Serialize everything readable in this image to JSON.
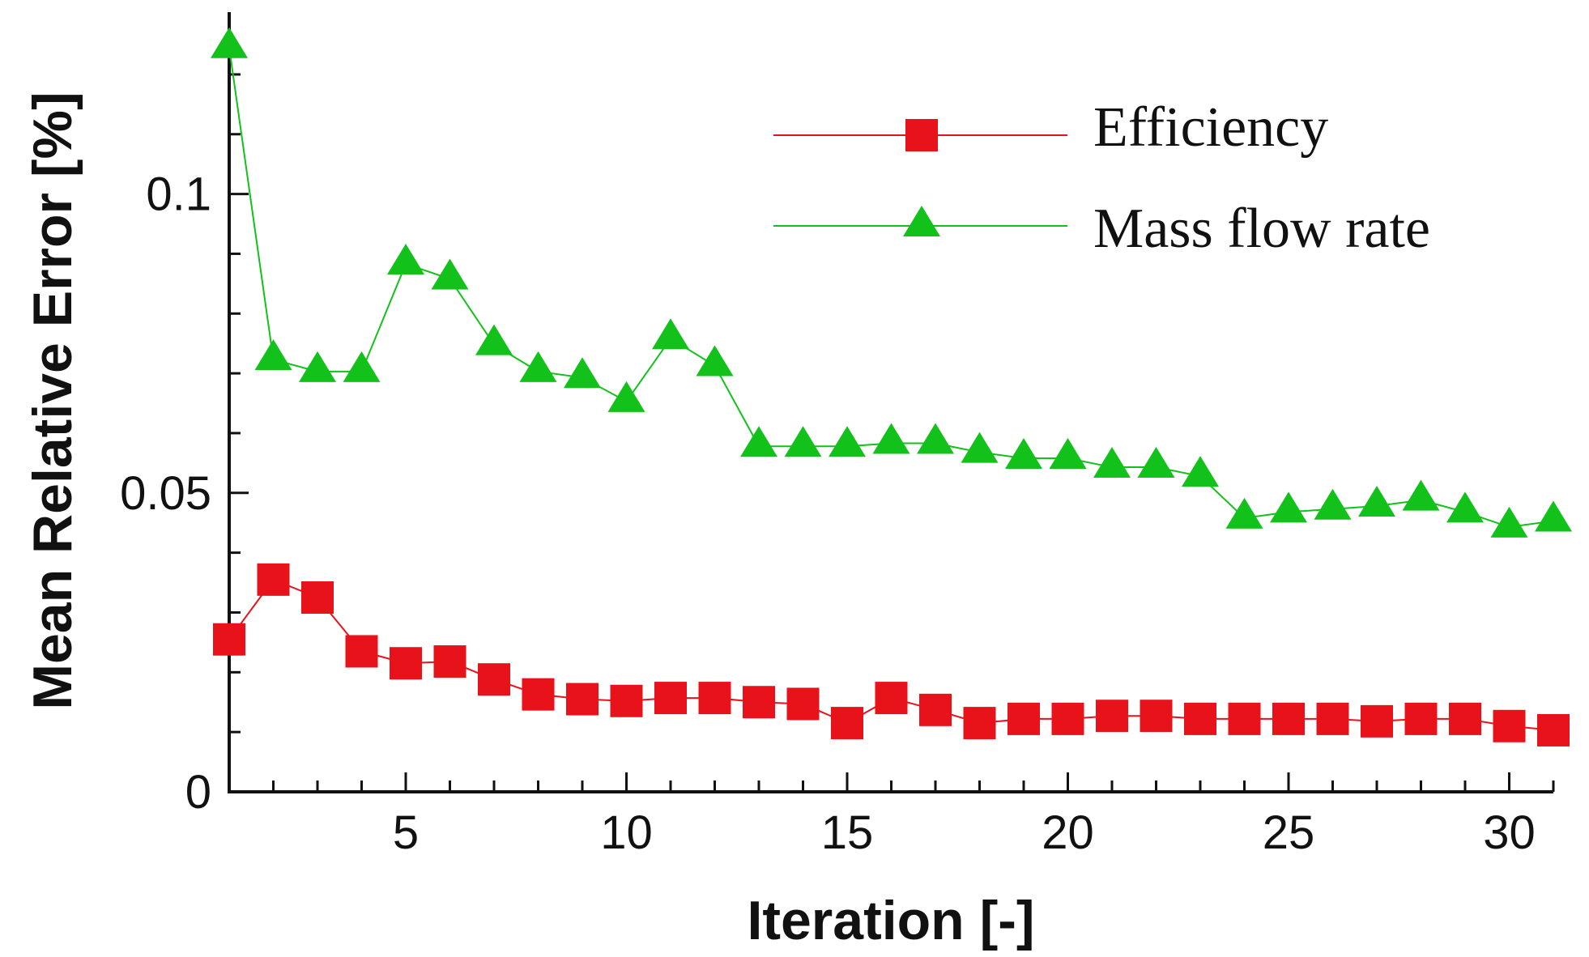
{
  "chart_data": {
    "type": "line",
    "title": "",
    "xlabel": "Iteration [-]",
    "ylabel": "Mean Relative Error [%]",
    "xlim": [
      1,
      31
    ],
    "ylim": [
      0,
      0.125
    ],
    "xticks": [
      5,
      10,
      15,
      20,
      25,
      30
    ],
    "xtick_labels": [
      "5",
      "10",
      "15",
      "20",
      "25",
      "30"
    ],
    "yticks": [
      0,
      0.05,
      0.1
    ],
    "ytick_labels": [
      "0",
      "0.05",
      "0.1"
    ],
    "yminor_ticks": [
      0.01,
      0.02,
      0.03,
      0.04,
      0.06,
      0.07,
      0.08,
      0.09,
      0.11,
      0.12
    ],
    "legend_position": "top-right",
    "x": [
      1,
      2,
      3,
      4,
      5,
      6,
      7,
      8,
      9,
      10,
      11,
      12,
      13,
      14,
      15,
      16,
      17,
      18,
      19,
      20,
      21,
      22,
      23,
      24,
      25,
      26,
      27,
      28,
      29,
      30,
      31
    ],
    "series": [
      {
        "name": "Efficiency",
        "color": "#e8121b",
        "marker": "square",
        "values": [
          0.0255,
          0.0355,
          0.0325,
          0.0235,
          0.0215,
          0.0218,
          0.0188,
          0.0163,
          0.0155,
          0.0152,
          0.0157,
          0.0157,
          0.015,
          0.0147,
          0.0115,
          0.0157,
          0.0137,
          0.0115,
          0.0122,
          0.0122,
          0.0127,
          0.0127,
          0.0122,
          0.0122,
          0.0122,
          0.0122,
          0.0118,
          0.0122,
          0.0122,
          0.011,
          0.0103
        ]
      },
      {
        "name": "Mass flow rate",
        "color": "#12c21a",
        "marker": "triangle",
        "values": [
          0.1245,
          0.0723,
          0.0703,
          0.0703,
          0.0883,
          0.0858,
          0.0748,
          0.0703,
          0.0693,
          0.0653,
          0.0758,
          0.0713,
          0.0578,
          0.0578,
          0.0578,
          0.0583,
          0.0583,
          0.0568,
          0.0558,
          0.0558,
          0.0543,
          0.0543,
          0.0528,
          0.0458,
          0.0468,
          0.0473,
          0.0478,
          0.0488,
          0.0468,
          0.0443,
          0.0453
        ]
      }
    ]
  }
}
